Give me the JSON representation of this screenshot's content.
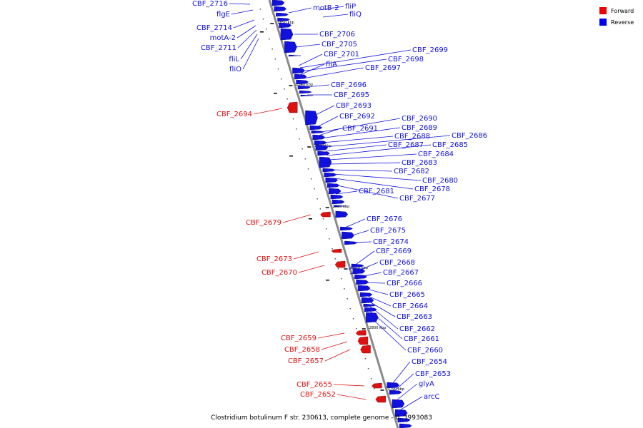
{
  "legend": [
    {
      "label": "Forward",
      "color": "#ee0000"
    },
    {
      "label": "Reverse",
      "color": "#0000ee"
    }
  ],
  "caption": "Clostridium botulinum F str. 230613, complete genome - 0..3993083",
  "colors": {
    "forward": "#dd1111",
    "reverse": "#1111dd",
    "axis": "#888888"
  },
  "ticks": [
    "2850 kbp",
    "2840 kbp",
    "2830 kbp",
    "2820 kbp",
    "2810 kbp",
    "2800 kbp",
    "2790 kbp"
  ],
  "genes_left": [
    {
      "name": "CBF_2716",
      "strand": "reverse"
    },
    {
      "name": "flgE",
      "strand": "reverse"
    },
    {
      "name": "CBF_2714",
      "strand": "reverse"
    },
    {
      "name": "motA-2",
      "strand": "reverse"
    },
    {
      "name": "CBF_2711",
      "strand": "reverse"
    },
    {
      "name": "fliL",
      "strand": "reverse"
    },
    {
      "name": "fliO",
      "strand": "reverse"
    },
    {
      "name": "CBF_2694",
      "strand": "forward"
    },
    {
      "name": "CBF_2679",
      "strand": "forward"
    },
    {
      "name": "CBF_2673",
      "strand": "forward"
    },
    {
      "name": "CBF_2670",
      "strand": "forward"
    },
    {
      "name": "CBF_2659",
      "strand": "forward"
    },
    {
      "name": "CBF_2658",
      "strand": "forward"
    },
    {
      "name": "CBF_2657",
      "strand": "forward"
    },
    {
      "name": "CBF_2655",
      "strand": "forward"
    },
    {
      "name": "CBF_2652",
      "strand": "forward"
    }
  ],
  "genes_right": [
    {
      "name": "motB-2",
      "strand": "reverse"
    },
    {
      "name": "fliP",
      "strand": "reverse"
    },
    {
      "name": "fliQ",
      "strand": "reverse"
    },
    {
      "name": "CBF_2706",
      "strand": "reverse"
    },
    {
      "name": "CBF_2705",
      "strand": "reverse"
    },
    {
      "name": "CBF_2701",
      "strand": "reverse"
    },
    {
      "name": "CBF_2699",
      "strand": "reverse"
    },
    {
      "name": "CBF_2698",
      "strand": "reverse"
    },
    {
      "name": "fliA",
      "strand": "reverse"
    },
    {
      "name": "CBF_2697",
      "strand": "reverse"
    },
    {
      "name": "CBF_2696",
      "strand": "reverse"
    },
    {
      "name": "CBF_2695",
      "strand": "reverse"
    },
    {
      "name": "CBF_2693",
      "strand": "reverse"
    },
    {
      "name": "CBF_2692",
      "strand": "reverse"
    },
    {
      "name": "CBF_2690",
      "strand": "reverse"
    },
    {
      "name": "CBF_2691",
      "strand": "reverse"
    },
    {
      "name": "CBF_2689",
      "strand": "reverse"
    },
    {
      "name": "CBF_2688",
      "strand": "reverse"
    },
    {
      "name": "CBF_2686",
      "strand": "reverse"
    },
    {
      "name": "CBF_2687",
      "strand": "reverse"
    },
    {
      "name": "CBF_2685",
      "strand": "reverse"
    },
    {
      "name": "CBF_2684",
      "strand": "reverse"
    },
    {
      "name": "CBF_2683",
      "strand": "reverse"
    },
    {
      "name": "CBF_2682",
      "strand": "reverse"
    },
    {
      "name": "CBF_2680",
      "strand": "reverse"
    },
    {
      "name": "CBF_2678",
      "strand": "reverse"
    },
    {
      "name": "CBF_2681",
      "strand": "reverse"
    },
    {
      "name": "CBF_2677",
      "strand": "reverse"
    },
    {
      "name": "CBF_2676",
      "strand": "reverse"
    },
    {
      "name": "CBF_2675",
      "strand": "reverse"
    },
    {
      "name": "CBF_2674",
      "strand": "reverse"
    },
    {
      "name": "CBF_2669",
      "strand": "reverse"
    },
    {
      "name": "CBF_2668",
      "strand": "reverse"
    },
    {
      "name": "CBF_2667",
      "strand": "reverse"
    },
    {
      "name": "CBF_2666",
      "strand": "reverse"
    },
    {
      "name": "CBF_2665",
      "strand": "reverse"
    },
    {
      "name": "CBF_2664",
      "strand": "reverse"
    },
    {
      "name": "CBF_2663",
      "strand": "reverse"
    },
    {
      "name": "CBF_2662",
      "strand": "reverse"
    },
    {
      "name": "CBF_2661",
      "strand": "reverse"
    },
    {
      "name": "CBF_2660",
      "strand": "reverse"
    },
    {
      "name": "CBF_2654",
      "strand": "reverse"
    },
    {
      "name": "CBF_2653",
      "strand": "reverse"
    },
    {
      "name": "glyA",
      "strand": "reverse"
    },
    {
      "name": "arcC",
      "strand": "reverse"
    }
  ]
}
